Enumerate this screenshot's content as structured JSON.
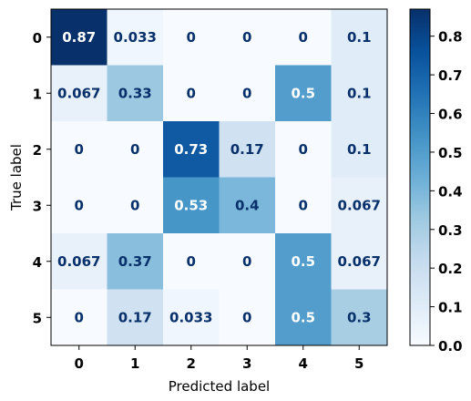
{
  "chart_data": {
    "type": "heatmap",
    "title": "",
    "xlabel": "Predicted label",
    "ylabel": "True label",
    "x_categories": [
      "0",
      "1",
      "2",
      "3",
      "4",
      "5"
    ],
    "y_categories": [
      "0",
      "1",
      "2",
      "3",
      "4",
      "5"
    ],
    "values": [
      [
        0.87,
        0.033,
        0,
        0,
        0,
        0.1
      ],
      [
        0.067,
        0.33,
        0,
        0,
        0.5,
        0.1
      ],
      [
        0,
        0,
        0.73,
        0.17,
        0,
        0.1
      ],
      [
        0,
        0,
        0.53,
        0.4,
        0,
        0.067
      ],
      [
        0.067,
        0.37,
        0,
        0,
        0.5,
        0.067
      ],
      [
        0,
        0.17,
        0.033,
        0,
        0.5,
        0.3
      ]
    ],
    "labels": [
      [
        "0.87",
        "0.033",
        "0",
        "0",
        "0",
        "0.1"
      ],
      [
        "0.067",
        "0.33",
        "0",
        "0",
        "0.5",
        "0.1"
      ],
      [
        "0",
        "0",
        "0.73",
        "0.17",
        "0",
        "0.1"
      ],
      [
        "0",
        "0",
        "0.53",
        "0.4",
        "0",
        "0.067"
      ],
      [
        "0.067",
        "0.37",
        "0",
        "0",
        "0.5",
        "0.067"
      ],
      [
        "0",
        "0.17",
        "0.033",
        "0",
        "0.5",
        "0.3"
      ]
    ],
    "colormap": "Blues",
    "vmin": 0,
    "vmax": 0.87,
    "colorbar_ticks": [
      "0.0",
      "0.1",
      "0.2",
      "0.3",
      "0.4",
      "0.5",
      "0.6",
      "0.7",
      "0.8"
    ],
    "grid": false
  }
}
